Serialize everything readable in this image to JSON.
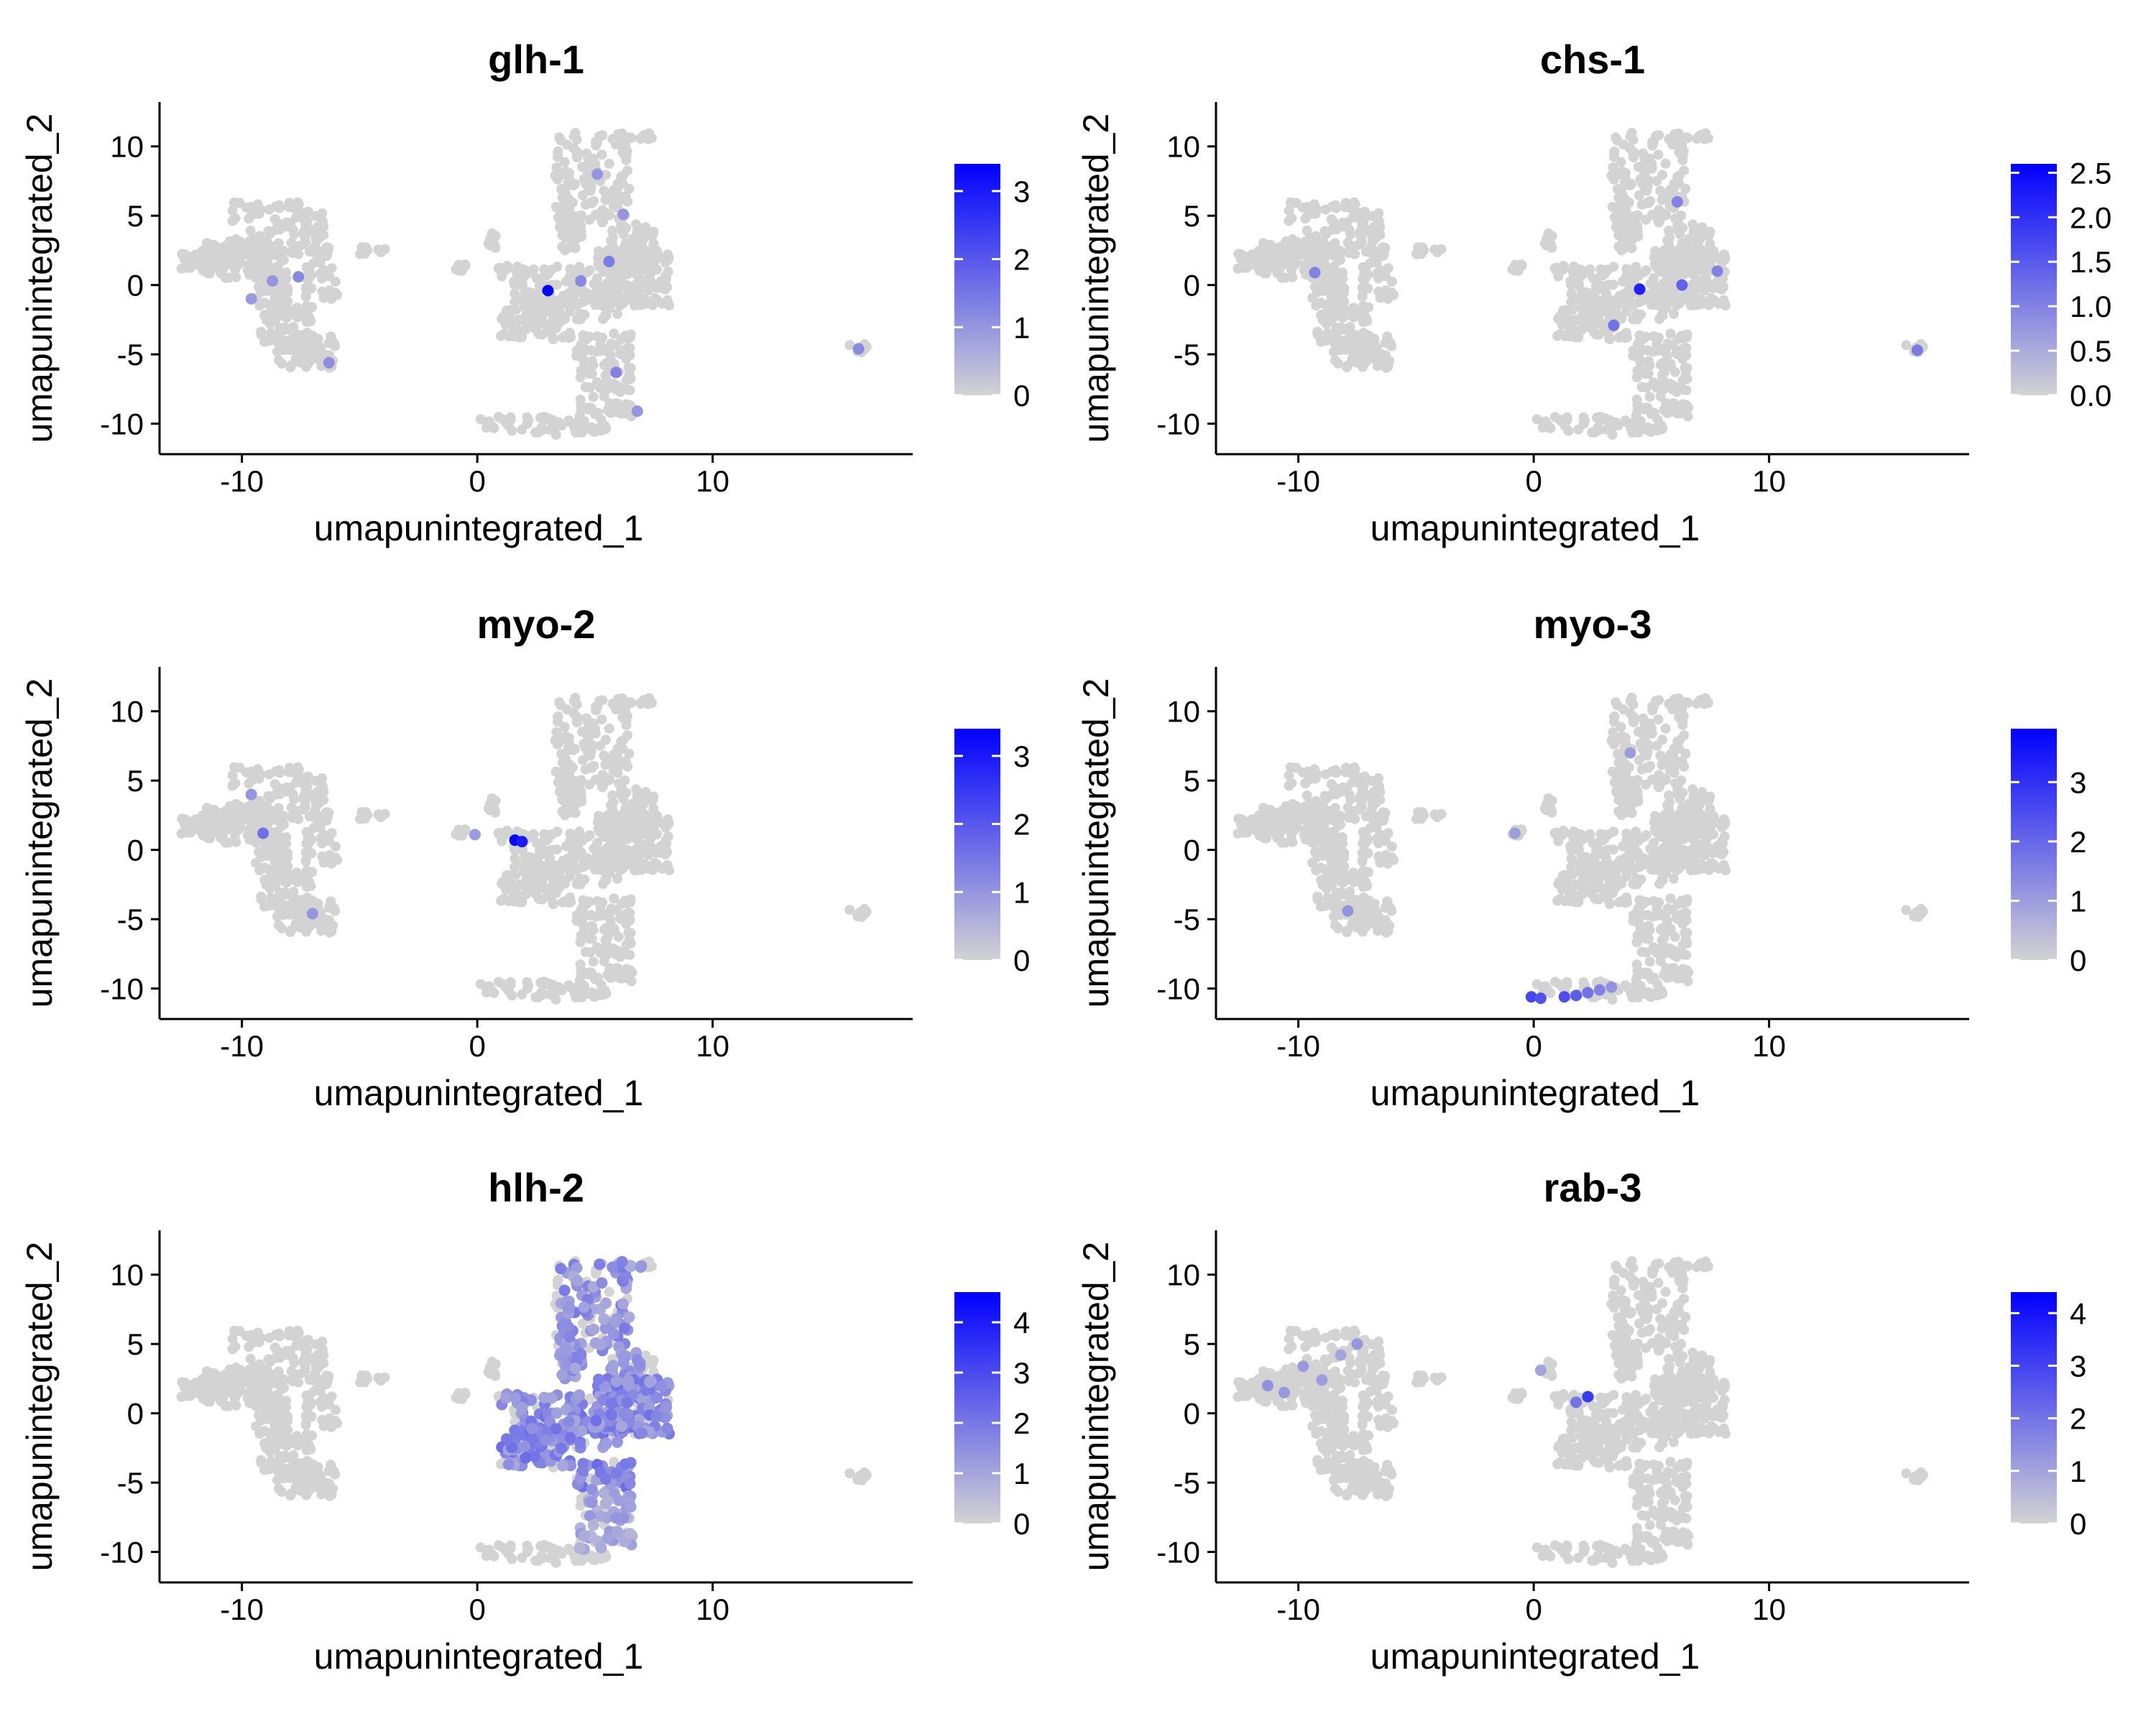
{
  "chart_data": [
    {
      "type": "scatter",
      "title": "glh-1",
      "xlabel": "umapunintegrated_1",
      "ylabel": "umapunintegrated_2",
      "xlim": [
        -13.5,
        18.5
      ],
      "ylim": [
        -12.2,
        13.2
      ],
      "xticks": [
        -10,
        0,
        10
      ],
      "yticks": [
        -10,
        -5,
        0,
        5,
        10
      ],
      "color_scale": {
        "low": "#d3d3d3",
        "high": "#0000ff",
        "min": 0,
        "max": 3.4,
        "ticks": [
          0,
          1,
          2,
          3
        ]
      },
      "highlights": [
        {
          "x": 3.0,
          "y": -0.4,
          "v": 3.3
        },
        {
          "x": 5.6,
          "y": 1.7,
          "v": 1.4
        },
        {
          "x": 4.4,
          "y": 0.3,
          "v": 1.2
        },
        {
          "x": 5.1,
          "y": 8.0,
          "v": 1.0
        },
        {
          "x": 6.2,
          "y": 5.1,
          "v": 1.0
        },
        {
          "x": 5.9,
          "y": -6.3,
          "v": 1.3
        },
        {
          "x": 6.8,
          "y": -9.1,
          "v": 1.0
        },
        {
          "x": -7.6,
          "y": 0.6,
          "v": 1.2
        },
        {
          "x": -8.7,
          "y": 0.3,
          "v": 1.0
        },
        {
          "x": -6.3,
          "y": -5.6,
          "v": 1.1
        },
        {
          "x": 16.2,
          "y": -4.6,
          "v": 1.2
        },
        {
          "x": -9.6,
          "y": -1.0,
          "v": 0.9
        }
      ]
    },
    {
      "type": "scatter",
      "title": "chs-1",
      "xlabel": "umapunintegrated_1",
      "ylabel": "umapunintegrated_2",
      "xlim": [
        -13.5,
        18.5
      ],
      "ylim": [
        -12.2,
        13.2
      ],
      "xticks": [
        -10,
        0,
        10
      ],
      "yticks": [
        -10,
        -5,
        0,
        5,
        10
      ],
      "color_scale": {
        "low": "#d3d3d3",
        "high": "#0000ff",
        "min": 0,
        "max": 2.6,
        "ticks": [
          "0.0",
          "0.5",
          "1.0",
          "1.5",
          "2.0",
          "2.5"
        ]
      },
      "highlights": [
        {
          "x": 4.5,
          "y": -0.3,
          "v": 2.2
        },
        {
          "x": 6.3,
          "y": 0.0,
          "v": 1.4
        },
        {
          "x": 3.4,
          "y": -2.9,
          "v": 1.2
        },
        {
          "x": 6.1,
          "y": 6.0,
          "v": 1.0
        },
        {
          "x": 7.8,
          "y": 1.0,
          "v": 1.0
        },
        {
          "x": -9.3,
          "y": 0.9,
          "v": 1.0
        },
        {
          "x": 16.3,
          "y": -4.7,
          "v": 1.1
        }
      ]
    },
    {
      "type": "scatter",
      "title": "myo-2",
      "xlabel": "umapunintegrated_1",
      "ylabel": "umapunintegrated_2",
      "xlim": [
        -13.5,
        18.5
      ],
      "ylim": [
        -12.2,
        13.2
      ],
      "xticks": [
        -10,
        0,
        10
      ],
      "yticks": [
        -10,
        -5,
        0,
        5,
        10
      ],
      "color_scale": {
        "low": "#d3d3d3",
        "high": "#0000ff",
        "min": 0,
        "max": 3.4,
        "ticks": [
          0,
          1,
          2,
          3
        ]
      },
      "highlights": [
        {
          "x": 1.6,
          "y": 0.7,
          "v": 3.3
        },
        {
          "x": 1.9,
          "y": 0.6,
          "v": 3.0
        },
        {
          "x": -9.1,
          "y": 1.2,
          "v": 1.6
        },
        {
          "x": -9.6,
          "y": 4.0,
          "v": 1.0
        },
        {
          "x": -7.0,
          "y": -4.6,
          "v": 1.0
        },
        {
          "x": -0.1,
          "y": 1.1,
          "v": 0.9
        }
      ]
    },
    {
      "type": "scatter",
      "title": "myo-3",
      "xlabel": "umapunintegrated_1",
      "ylabel": "umapunintegrated_2",
      "xlim": [
        -13.5,
        18.5
      ],
      "ylim": [
        -12.2,
        13.2
      ],
      "xticks": [
        -10,
        0,
        10
      ],
      "yticks": [
        -10,
        -5,
        0,
        5,
        10
      ],
      "color_scale": {
        "low": "#d3d3d3",
        "high": "#0000ff",
        "min": 0,
        "max": 3.9,
        "ticks": [
          0,
          1,
          2,
          3
        ]
      },
      "highlights": [
        {
          "x": -0.1,
          "y": -10.6,
          "v": 2.6
        },
        {
          "x": 0.3,
          "y": -10.7,
          "v": 2.4
        },
        {
          "x": 1.3,
          "y": -10.6,
          "v": 2.5
        },
        {
          "x": 1.8,
          "y": -10.5,
          "v": 2.2
        },
        {
          "x": 2.3,
          "y": -10.3,
          "v": 1.8
        },
        {
          "x": 2.8,
          "y": -10.1,
          "v": 1.5
        },
        {
          "x": 3.3,
          "y": -9.9,
          "v": 1.2
        },
        {
          "x": 4.1,
          "y": 7.0,
          "v": 1.0
        },
        {
          "x": -7.9,
          "y": -4.4,
          "v": 1.2
        },
        {
          "x": -0.8,
          "y": 1.2,
          "v": 1.0
        }
      ]
    },
    {
      "type": "scatter",
      "title": "hlh-2",
      "xlabel": "umapunintegrated_1",
      "ylabel": "umapunintegrated_2",
      "xlim": [
        -13.5,
        18.5
      ],
      "ylim": [
        -12.2,
        13.2
      ],
      "xticks": [
        -10,
        0,
        10
      ],
      "yticks": [
        -10,
        -5,
        0,
        5,
        10
      ],
      "color_scale": {
        "low": "#d3d3d3",
        "high": "#0000ff",
        "min": 0,
        "max": 4.6,
        "ticks": [
          0,
          1,
          2,
          3,
          4
        ]
      },
      "highlight_regions": [
        {
          "x0": 1.0,
          "x1": 8.2,
          "y0": -5.5,
          "y1": 2.5,
          "v": 1.6
        },
        {
          "x0": 3.5,
          "x1": 7.0,
          "y0": 2.5,
          "y1": 11.0,
          "v": 1.4
        },
        {
          "x0": 4.2,
          "x1": 6.6,
          "y0": -10.0,
          "y1": -5.5,
          "v": 1.0
        }
      ]
    },
    {
      "type": "scatter",
      "title": "rab-3",
      "xlabel": "umapunintegrated_1",
      "ylabel": "umapunintegrated_2",
      "xlim": [
        -13.5,
        18.5
      ],
      "ylim": [
        -12.2,
        13.2
      ],
      "xticks": [
        -10,
        0,
        10
      ],
      "yticks": [
        -10,
        -5,
        0,
        5,
        10
      ],
      "color_scale": {
        "low": "#d3d3d3",
        "high": "#0000ff",
        "min": 0,
        "max": 4.4,
        "ticks": [
          0,
          1,
          2,
          3,
          4
        ]
      },
      "highlights": [
        {
          "x": 2.3,
          "y": 1.2,
          "v": 3.2
        },
        {
          "x": 1.8,
          "y": 0.8,
          "v": 2.0
        },
        {
          "x": -7.5,
          "y": 5.0,
          "v": 1.3
        },
        {
          "x": -9.8,
          "y": 3.4,
          "v": 1.2
        },
        {
          "x": -11.3,
          "y": 2.0,
          "v": 1.4
        },
        {
          "x": -10.6,
          "y": 1.5,
          "v": 1.2
        },
        {
          "x": -9.0,
          "y": 2.4,
          "v": 1.1
        },
        {
          "x": -8.2,
          "y": 4.2,
          "v": 1.0
        },
        {
          "x": 0.3,
          "y": 3.1,
          "v": 1.0
        }
      ]
    }
  ]
}
